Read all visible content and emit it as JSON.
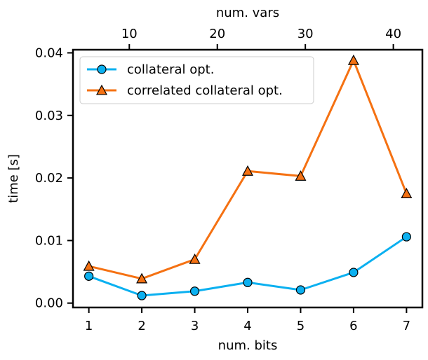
{
  "chart_data": {
    "type": "line",
    "xlabel": "num. bits",
    "ylabel": "time [s]",
    "top_xlabel": "num. vars",
    "x": [
      1,
      2,
      3,
      4,
      5,
      6,
      7
    ],
    "xlim": [
      0.7,
      7.3
    ],
    "ylim": [
      -0.0007,
      0.0405
    ],
    "x_ticks": [
      "1",
      "2",
      "3",
      "4",
      "5",
      "6",
      "7"
    ],
    "y_ticks": [
      {
        "value": 0.0,
        "label": "0.00"
      },
      {
        "value": 0.01,
        "label": "0.01"
      },
      {
        "value": 0.02,
        "label": "0.02"
      },
      {
        "value": 0.03,
        "label": "0.03"
      },
      {
        "value": 0.04,
        "label": "0.04"
      }
    ],
    "top_x_ticks": [
      {
        "value": 10,
        "label": "10"
      },
      {
        "value": 20,
        "label": "20"
      },
      {
        "value": 30,
        "label": "30"
      },
      {
        "value": 40,
        "label": "40"
      }
    ],
    "top_xlim": [
      3.6,
      43.3
    ],
    "grid": false,
    "legend_position": "top-left",
    "series": [
      {
        "name": "collateral opt.",
        "marker": "circle",
        "color": "#0bb0f0",
        "values": [
          0.0043,
          0.0012,
          0.0019,
          0.0033,
          0.0021,
          0.0049,
          0.0106
        ]
      },
      {
        "name": "correlated collateral opt.",
        "marker": "triangle",
        "color": "#f57112",
        "values": [
          0.0059,
          0.0039,
          0.007,
          0.0211,
          0.0203,
          0.0388,
          0.0175
        ]
      }
    ]
  }
}
